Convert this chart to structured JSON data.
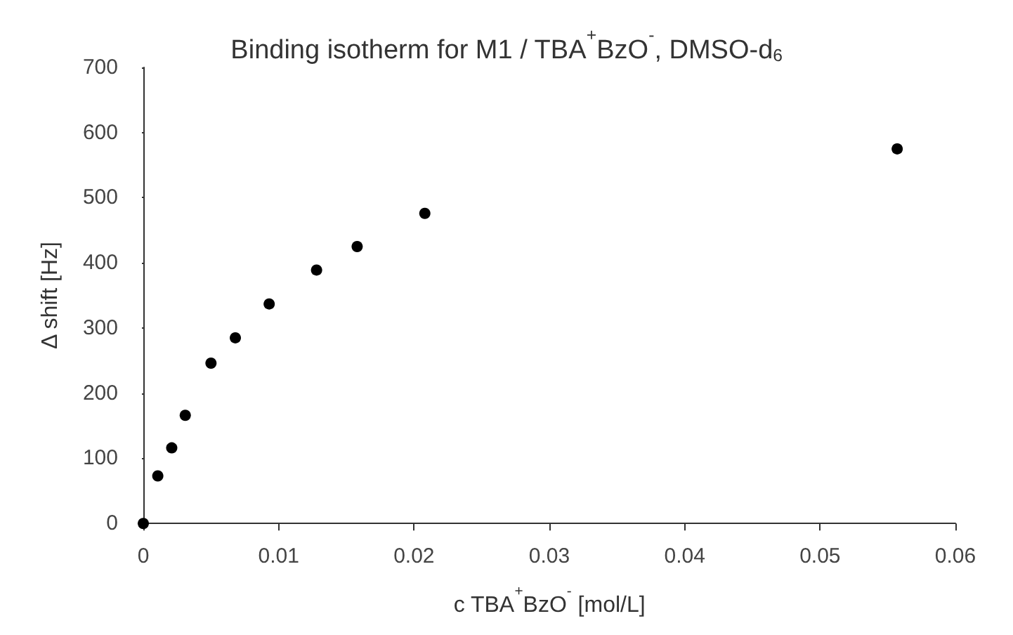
{
  "chart_data": {
    "type": "scatter",
    "title": "Binding isotherm for M1 / TBA$^{+}$BzO$^{-}$, DMSO-d$_{6}$",
    "xlabel": "c TBA$^{+}$BzO$^{-}$ [mol/L]",
    "ylabel": "Δ shift [Hz]",
    "x": [
      0,
      0.00107,
      0.0021,
      0.0031,
      0.005,
      0.0068,
      0.0093,
      0.0128,
      0.0158,
      0.0208,
      0.0557
    ],
    "series": [
      {
        "color": "#000000",
        "values": [
          0,
          73,
          116,
          166,
          246,
          285,
          337,
          389,
          425,
          476,
          575
        ]
      }
    ],
    "xlim": [
      0,
      0.06
    ],
    "xticks": [
      0,
      0.01,
      0.02,
      0.03,
      0.04,
      0.05,
      0.06
    ],
    "ylim": [
      0,
      700
    ],
    "yticks": [
      0,
      100,
      200,
      300,
      400,
      500,
      600,
      700
    ],
    "grid": false,
    "marker": "circle"
  }
}
